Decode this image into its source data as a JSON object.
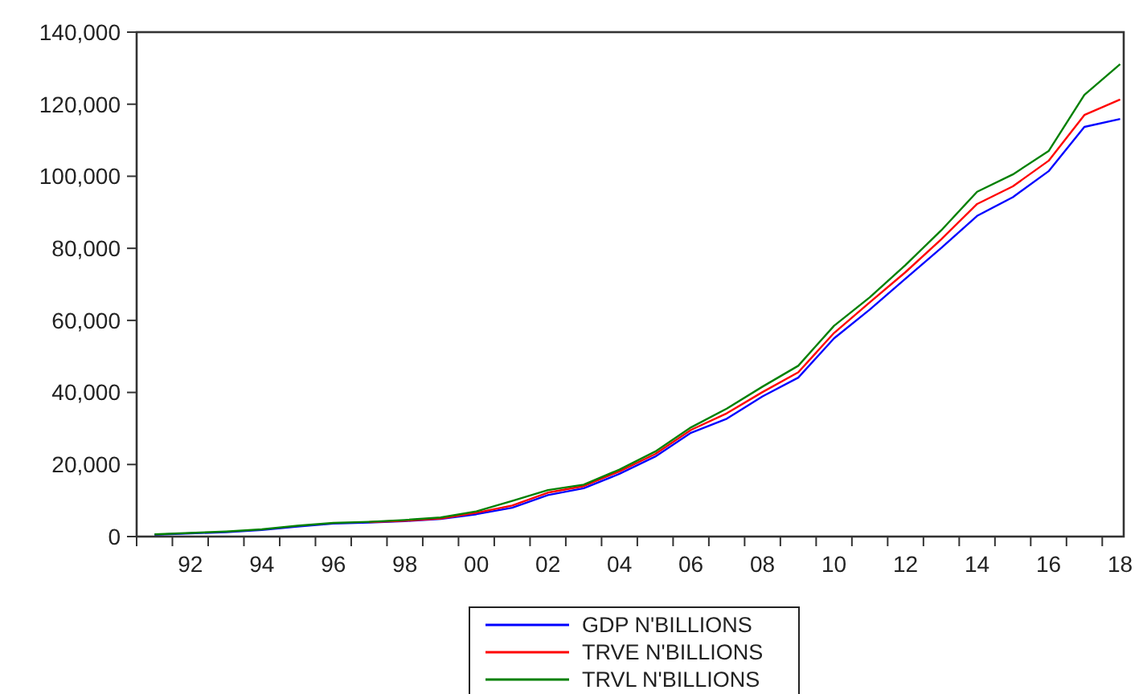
{
  "chart_data": {
    "type": "line",
    "x": [
      1991,
      1992,
      1993,
      1994,
      1995,
      1996,
      1997,
      1998,
      1999,
      2000,
      2001,
      2002,
      2003,
      2004,
      2005,
      2006,
      2007,
      2008,
      2009,
      2010,
      2011,
      2012,
      2013,
      2014,
      2015,
      2016,
      2017,
      2018
    ],
    "series": [
      {
        "name": "GDP N'BILLIONS",
        "color": "#0000ff",
        "values": [
          500,
          900,
          1200,
          1800,
          2800,
          3600,
          3900,
          4300,
          4900,
          6200,
          8000,
          11500,
          13400,
          17400,
          22200,
          28800,
          32700,
          38900,
          44100,
          55000,
          63000,
          71600,
          80100,
          89000,
          94200,
          101400,
          113700,
          115900
        ]
      },
      {
        "name": "TRVE N'BILLIONS",
        "color": "#ff0000",
        "values": [
          null,
          null,
          null,
          null,
          null,
          null,
          4000,
          4400,
          5000,
          6600,
          8600,
          12200,
          14000,
          18100,
          22900,
          29600,
          34200,
          40100,
          45600,
          56500,
          65000,
          73400,
          82500,
          92300,
          97200,
          104300,
          117000,
          121300
        ]
      },
      {
        "name": "TRVL N'BILLIONS",
        "color": "#008000",
        "values": [
          600,
          1000,
          1400,
          2000,
          3000,
          3800,
          4100,
          4600,
          5300,
          7000,
          9900,
          12900,
          14400,
          18600,
          23600,
          30300,
          35500,
          41600,
          47400,
          58500,
          66400,
          75400,
          85000,
          95700,
          100500,
          107000,
          122600,
          131100
        ]
      }
    ],
    "xlim": [
      1990.5,
      2018.1
    ],
    "xticks": [
      {
        "value": 1990.5,
        "label": null
      },
      {
        "value": 1991.5,
        "label": null
      },
      {
        "value": 1992,
        "label": "92"
      },
      {
        "value": 1992.5,
        "label": null
      },
      {
        "value": 1993.5,
        "label": null
      },
      {
        "value": 1994,
        "label": "94"
      },
      {
        "value": 1994.5,
        "label": null
      },
      {
        "value": 1995.5,
        "label": null
      },
      {
        "value": 1996,
        "label": "96"
      },
      {
        "value": 1996.5,
        "label": null
      },
      {
        "value": 1997.5,
        "label": null
      },
      {
        "value": 1998,
        "label": "98"
      },
      {
        "value": 1998.5,
        "label": null
      },
      {
        "value": 1999.5,
        "label": null
      },
      {
        "value": 2000,
        "label": "00"
      },
      {
        "value": 2000.5,
        "label": null
      },
      {
        "value": 2001.5,
        "label": null
      },
      {
        "value": 2002,
        "label": "02"
      },
      {
        "value": 2002.5,
        "label": null
      },
      {
        "value": 2003.5,
        "label": null
      },
      {
        "value": 2004,
        "label": "04"
      },
      {
        "value": 2004.5,
        "label": null
      },
      {
        "value": 2005.5,
        "label": null
      },
      {
        "value": 2006,
        "label": "06"
      },
      {
        "value": 2006.5,
        "label": null
      },
      {
        "value": 2007.5,
        "label": null
      },
      {
        "value": 2008,
        "label": "08"
      },
      {
        "value": 2008.5,
        "label": null
      },
      {
        "value": 2009.5,
        "label": null
      },
      {
        "value": 2010,
        "label": "10"
      },
      {
        "value": 2010.5,
        "label": null
      },
      {
        "value": 2011.5,
        "label": null
      },
      {
        "value": 2012,
        "label": "12"
      },
      {
        "value": 2012.5,
        "label": null
      },
      {
        "value": 2013.5,
        "label": null
      },
      {
        "value": 2014,
        "label": "14"
      },
      {
        "value": 2014.5,
        "label": null
      },
      {
        "value": 2015.5,
        "label": null
      },
      {
        "value": 2016,
        "label": "16"
      },
      {
        "value": 2016.5,
        "label": null
      },
      {
        "value": 2017.5,
        "label": null
      },
      {
        "value": 2018,
        "label": "18"
      }
    ],
    "ylim": [
      0,
      140000
    ],
    "yticks": [
      {
        "value": 0,
        "label": "0"
      },
      {
        "value": 20000,
        "label": "20,000"
      },
      {
        "value": 40000,
        "label": "40,000"
      },
      {
        "value": 60000,
        "label": "60,000"
      },
      {
        "value": 80000,
        "label": "80,000"
      },
      {
        "value": 100000,
        "label": "100,000"
      },
      {
        "value": 120000,
        "label": "120,000"
      },
      {
        "value": 140000,
        "label": "140,000"
      }
    ],
    "legend": "bottom",
    "grid": false,
    "marker": "none",
    "line_style": "solid"
  }
}
